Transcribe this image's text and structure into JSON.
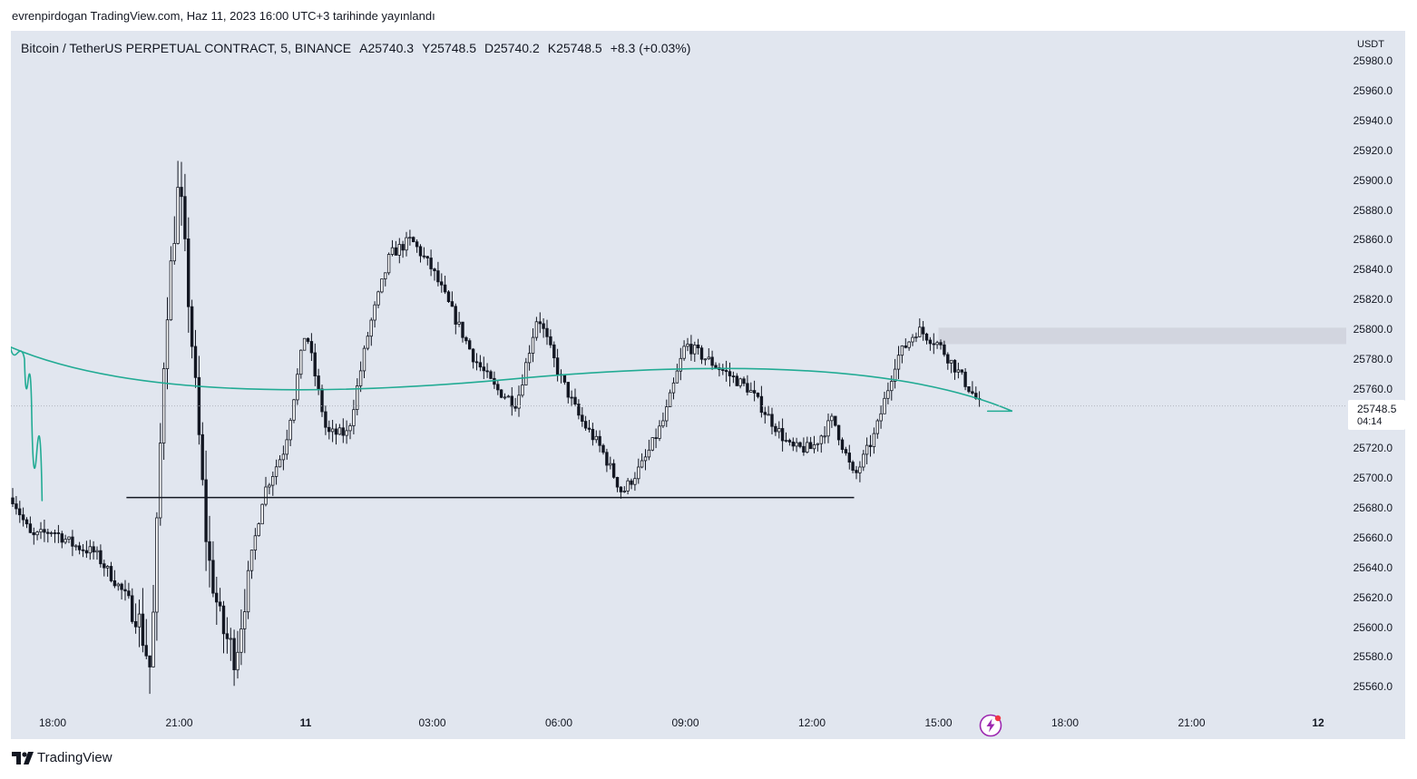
{
  "publish_line": "evrenpirdogan TradingView.com, Haz 11, 2023 16:00 UTC+3 tarihinde yayınlandı",
  "legend": {
    "symbol": "Bitcoin / TetherUS PERPETUAL CONTRACT, 5, BINANCE",
    "open": "A25740.3",
    "high": "Y25748.5",
    "low": "D25740.2",
    "close": "K25748.5",
    "change": "+8.3 (+0.03%)"
  },
  "price_axis": {
    "currency": "USDT",
    "labels": [
      "25980.0",
      "25960.0",
      "25940.0",
      "25920.0",
      "25900.0",
      "25880.0",
      "25860.0",
      "25840.0",
      "25820.0",
      "25800.0",
      "25780.0",
      "25760.0",
      "25720.0",
      "25700.0",
      "25680.0",
      "25660.0",
      "25640.0",
      "25620.0",
      "25600.0",
      "25580.0",
      "25560.0"
    ],
    "last_price": "25748.5",
    "countdown": "04:14"
  },
  "time_axis": {
    "labels": [
      "18:00",
      "21:00",
      "11",
      "03:00",
      "06:00",
      "09:00",
      "12:00",
      "15:00",
      "18:00",
      "21:00",
      "12"
    ]
  },
  "brand": {
    "name": "TradingView",
    "logo_icon": "tradingview-logo-icon"
  },
  "colors": {
    "background": "#e1e6ef",
    "candle": "#131722",
    "drawing_curve": "#22ab94",
    "support_line": "#131722",
    "zone_fill": "#d2d5df",
    "badge": "#9c27b0",
    "badge_dot": "#f23645"
  },
  "chart_data": {
    "type": "candlestick",
    "symbol": "BTCUSDT.P",
    "interval_minutes": 5,
    "ylim": [
      25550,
      25985
    ],
    "x_ticks": [
      "18:00",
      "21:00",
      "11",
      "03:00",
      "06:00",
      "09:00",
      "12:00",
      "15:00",
      "18:00",
      "21:00",
      "12"
    ],
    "close_path": [
      [
        "17:00",
        25690
      ],
      [
        "17:30",
        25660
      ],
      [
        "18:00",
        25665
      ],
      [
        "18:30",
        25655
      ],
      [
        "19:00",
        25650
      ],
      [
        "19:30",
        25630
      ],
      [
        "20:00",
        25610
      ],
      [
        "20:20",
        25570
      ],
      [
        "20:40",
        25800
      ],
      [
        "21:00",
        25900
      ],
      [
        "21:20",
        25780
      ],
      [
        "21:40",
        25650
      ],
      [
        "22:00",
        25600
      ],
      [
        "22:20",
        25580
      ],
      [
        "22:40",
        25640
      ],
      [
        "23:00",
        25690
      ],
      [
        "23:30",
        25720
      ],
      [
        "00:00",
        25800
      ],
      [
        "00:30",
        25730
      ],
      [
        "01:00",
        25730
      ],
      [
        "01:30",
        25800
      ],
      [
        "02:00",
        25850
      ],
      [
        "02:30",
        25860
      ],
      [
        "03:00",
        25840
      ],
      [
        "03:30",
        25810
      ],
      [
        "04:00",
        25780
      ],
      [
        "04:30",
        25760
      ],
      [
        "05:00",
        25750
      ],
      [
        "05:30",
        25810
      ],
      [
        "06:00",
        25770
      ],
      [
        "06:30",
        25740
      ],
      [
        "07:00",
        25720
      ],
      [
        "07:30",
        25690
      ],
      [
        "08:00",
        25710
      ],
      [
        "08:30",
        25740
      ],
      [
        "09:00",
        25790
      ],
      [
        "09:30",
        25780
      ],
      [
        "10:00",
        25770
      ],
      [
        "10:30",
        25760
      ],
      [
        "11:00",
        25740
      ],
      [
        "11:30",
        25720
      ],
      [
        "12:00",
        25720
      ],
      [
        "12:30",
        25740
      ],
      [
        "13:00",
        25700
      ],
      [
        "13:30",
        25730
      ],
      [
        "14:00",
        25780
      ],
      [
        "14:30",
        25800
      ],
      [
        "15:00",
        25790
      ],
      [
        "15:30",
        25770
      ],
      [
        "16:00",
        25748.5
      ]
    ],
    "last_price": 25748.5,
    "annotations": {
      "zone": {
        "from": 25790,
        "to": 25801,
        "start": "15:00"
      },
      "support_line": {
        "price": 25687,
        "from": "13:00",
        "to": "19:45"
      },
      "projection_curve": [
        [
          "16:10",
          25745
        ],
        [
          "16:45",
          25745
        ],
        [
          "17:00",
          25788
        ],
        [
          "17:20",
          25780
        ],
        [
          "17:30",
          25750
        ],
        [
          "17:45",
          25685
        ]
      ]
    }
  }
}
